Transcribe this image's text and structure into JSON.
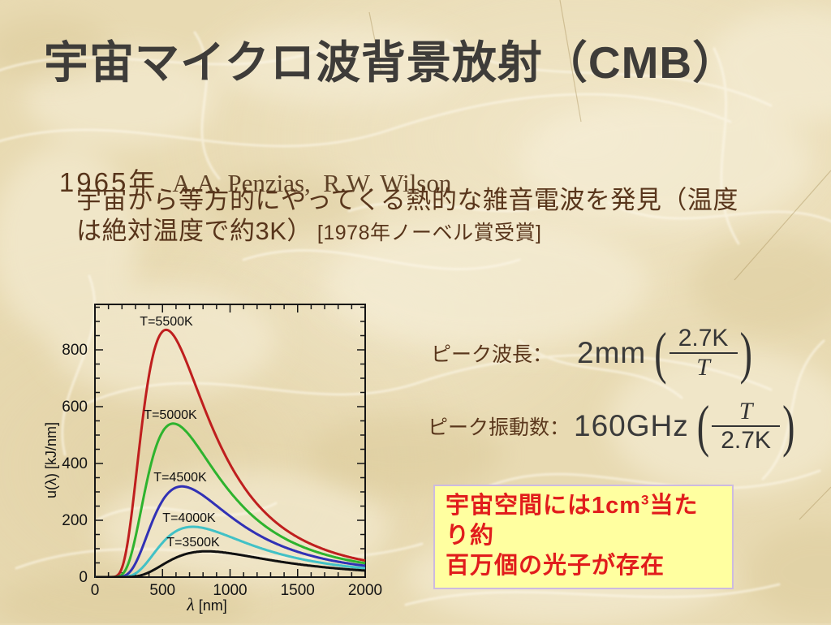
{
  "slide": {
    "title": "宇宙マイクロ波背景放射（CMB）",
    "discovery": {
      "year": "1965年",
      "names": "A.A. Penzias,  R.W. Wilson",
      "line1": "宇宙から等方的にやってくる熱的な雑音電波を発見（温度",
      "line2": "は絶対温度で約3K）",
      "note": "[1978年ノーベル賞受賞]"
    },
    "peak_wavelength": {
      "label": "ピーク波長：",
      "value": "2mm",
      "frac_num": "2.7K",
      "frac_den": "T"
    },
    "peak_frequency": {
      "label": "ピーク振動数：",
      "value": "160GHz",
      "frac_num": "T",
      "frac_den": "2.7K"
    },
    "photon_note": {
      "line1_pre": "宇宙空間には1cm",
      "line1_sup": "3",
      "line1_post": "当たり約",
      "line2": "百万個の光子が存在",
      "bg": "#ffffa0",
      "border": "#cdbbdf",
      "text_color": "#e11c1c"
    }
  },
  "chart_data": {
    "type": "line",
    "title": "",
    "xlabel": "λ [nm]",
    "ylabel": "u(λ)  [kJ/nm]",
    "xlim": [
      0,
      2000
    ],
    "ylim": [
      0,
      960
    ],
    "xticks": [
      0,
      500,
      1000,
      1500,
      2000
    ],
    "yticks": [
      0,
      200,
      400,
      600,
      800
    ],
    "minor_x": 100,
    "minor_y": 50,
    "grid": false,
    "legend": "inline-labels",
    "model": {
      "formula": "planck-spectral-density",
      "c2_nmK": 14388000,
      "scale": 5.03e+18
    },
    "series": [
      {
        "name": "T=5500K",
        "T": 5500,
        "color": "#bf1e1e",
        "peak_x_nm": 527,
        "peak_y": 870,
        "label_pos": {
          "x": 160,
          "y": 41
        }
      },
      {
        "name": "T=5000K",
        "T": 5000,
        "color": "#2eb32e",
        "peak_x_nm": 580,
        "peak_y": 540,
        "label_pos": {
          "x": 165,
          "y": 156
        }
      },
      {
        "name": "T=4500K",
        "T": 4500,
        "color": "#3131b5",
        "peak_x_nm": 644,
        "peak_y": 320,
        "label_pos": {
          "x": 177,
          "y": 233
        }
      },
      {
        "name": "T=4000K",
        "T": 4000,
        "color": "#41c1c6",
        "peak_x_nm": 724,
        "peak_y": 178,
        "label_pos": {
          "x": 188,
          "y": 283
        }
      },
      {
        "name": "T=3500K",
        "T": 3500,
        "color": "#101010",
        "peak_x_nm": 828,
        "peak_y": 91,
        "label_pos": {
          "x": 193,
          "y": 313
        }
      }
    ]
  }
}
